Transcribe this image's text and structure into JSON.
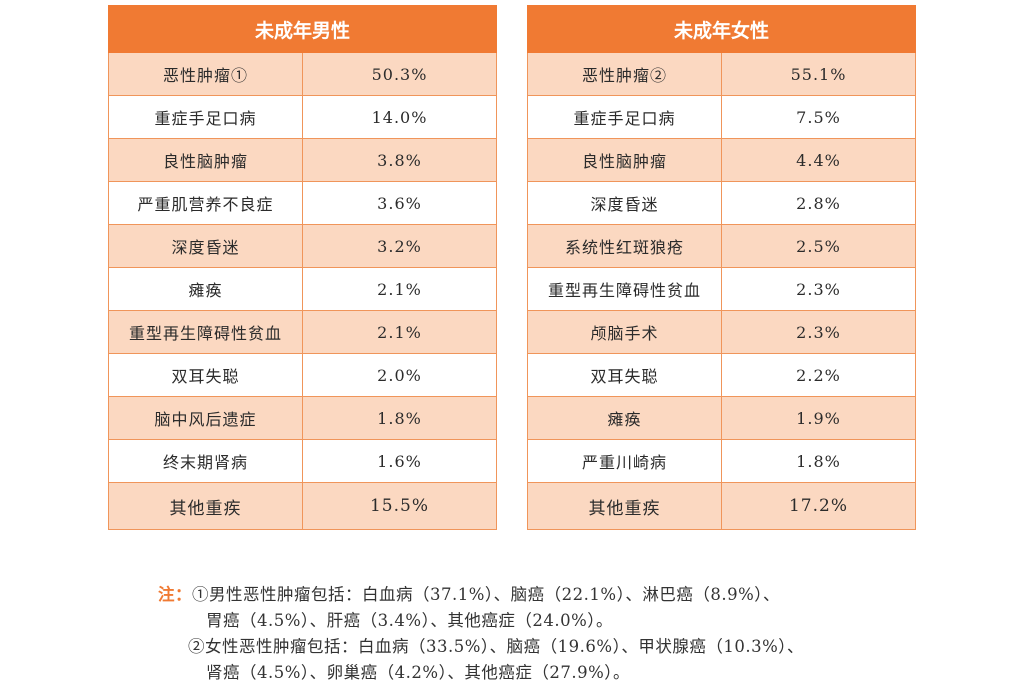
{
  "colors": {
    "header_bg": "#f07a33",
    "stripe_bg": "#fbd8c1",
    "note_label": "#f07a33"
  },
  "male_table": {
    "title": "未成年男性",
    "rows": [
      {
        "name": "恶性肿瘤①",
        "value": "50.3%"
      },
      {
        "name": "重症手足口病",
        "value": "14.0%"
      },
      {
        "name": "良性脑肿瘤",
        "value": "3.8%"
      },
      {
        "name": "严重肌营养不良症",
        "value": "3.6%"
      },
      {
        "name": "深度昏迷",
        "value": "3.2%"
      },
      {
        "name": "瘫痪",
        "value": "2.1%"
      },
      {
        "name": "重型再生障碍性贫血",
        "value": "2.1%"
      },
      {
        "name": "双耳失聪",
        "value": "2.0%"
      },
      {
        "name": "脑中风后遗症",
        "value": "1.8%"
      },
      {
        "name": "终末期肾病",
        "value": "1.6%"
      },
      {
        "name": "其他重疾",
        "value": "15.5%"
      }
    ]
  },
  "female_table": {
    "title": "未成年女性",
    "rows": [
      {
        "name": "恶性肿瘤②",
        "value": "55.1%"
      },
      {
        "name": "重症手足口病",
        "value": "7.5%"
      },
      {
        "name": "良性脑肿瘤",
        "value": "4.4%"
      },
      {
        "name": "深度昏迷",
        "value": "2.8%"
      },
      {
        "name": "系统性红斑狼疮",
        "value": "2.5%"
      },
      {
        "name": "重型再生障碍性贫血",
        "value": "2.3%"
      },
      {
        "name": "颅脑手术",
        "value": "2.3%"
      },
      {
        "name": "双耳失聪",
        "value": "2.2%"
      },
      {
        "name": "瘫痪",
        "value": "1.9%"
      },
      {
        "name": "严重川崎病",
        "value": "1.8%"
      },
      {
        "name": "其他重疾",
        "value": "17.2%"
      }
    ]
  },
  "notes": {
    "label": "注：",
    "note1_line1": "①男性恶性肿瘤包括：白血病（37.1%）、脑癌（22.1%）、淋巴癌（8.9%）、",
    "note1_line2": "胃癌（4.5%）、肝癌（3.4%）、其他癌症（24.0%）。",
    "note2_line1": "②女性恶性肿瘤包括：白血病（33.5%）、脑癌（19.6%）、甲状腺癌（10.3%）、",
    "note2_line2": "肾癌（4.5%）、卵巢癌（4.2%）、其他癌症（27.9%）。"
  }
}
